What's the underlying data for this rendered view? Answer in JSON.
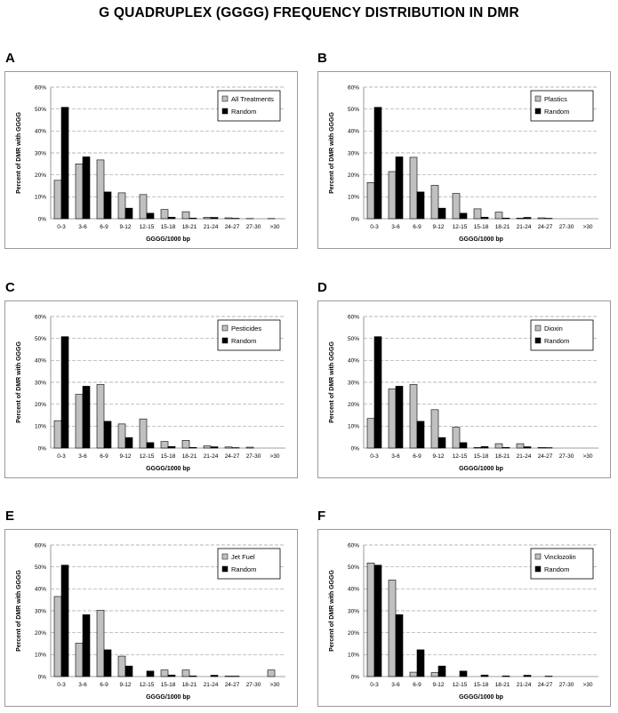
{
  "title": "G QUADRUPLEX (GGGG) FREQUENCY DISTRIBUTION IN DMR",
  "colors": {
    "treatment": "#c0c0c0",
    "random": "#000000",
    "grid": "#a0a0a0"
  },
  "chart_data": [
    {
      "panel": "A",
      "type": "bar",
      "categories": [
        "0-3",
        "3-6",
        "6-9",
        "9-12",
        "12-15",
        "15-18",
        "18-21",
        "21-24",
        "24-27",
        "27-30",
        ">30"
      ],
      "series": [
        {
          "name": "All Treatments",
          "values": [
            17.5,
            25,
            26.8,
            11.8,
            11,
            4.2,
            3.2,
            0.6,
            0.4,
            0.1,
            0.1
          ]
        },
        {
          "name": "Random",
          "values": [
            50.8,
            28.2,
            12.2,
            4.8,
            2.5,
            0.7,
            0.3,
            0.6,
            0.2,
            0,
            0
          ]
        }
      ],
      "ylim": [
        0,
        60
      ],
      "yticks": [
        "0%",
        "10%",
        "20%",
        "30%",
        "40%",
        "50%",
        "60%"
      ],
      "xlabel": "GGGG/1000 bp",
      "ylabel": "Percent of DMR with GGGG",
      "legend_position": "top-right"
    },
    {
      "panel": "B",
      "type": "bar",
      "categories": [
        "0-3",
        "3-6",
        "6-9",
        "9-12",
        "12-15",
        "15-18",
        "18-21",
        "21-24",
        "24-27",
        "27-30",
        ">30"
      ],
      "series": [
        {
          "name": "Plastics",
          "values": [
            16.5,
            21.5,
            28,
            15.2,
            11.5,
            4.5,
            3,
            0.3,
            0.4,
            0,
            0
          ]
        },
        {
          "name": "Random",
          "values": [
            50.8,
            28.2,
            12.2,
            4.8,
            2.5,
            0.7,
            0.3,
            0.6,
            0.2,
            0,
            0
          ]
        }
      ],
      "ylim": [
        0,
        60
      ],
      "yticks": [
        "0%",
        "10%",
        "20%",
        "30%",
        "40%",
        "50%",
        "60%"
      ],
      "xlabel": "GGGG/1000 bp",
      "ylabel": "Percent of DMR with GGGG",
      "legend_position": "top-right"
    },
    {
      "panel": "C",
      "type": "bar",
      "categories": [
        "0-3",
        "3-6",
        "6-9",
        "9-12",
        "12-15",
        "15-18",
        "18-21",
        "21-24",
        "24-27",
        "27-30",
        ">30"
      ],
      "series": [
        {
          "name": "Pesticides",
          "values": [
            12.5,
            24.5,
            29,
            11,
            13.3,
            3,
            3.5,
            1,
            0.5,
            0.4,
            0
          ]
        },
        {
          "name": "Random",
          "values": [
            50.8,
            28.2,
            12.2,
            4.8,
            2.5,
            0.7,
            0.3,
            0.6,
            0.2,
            0,
            0
          ]
        }
      ],
      "ylim": [
        0,
        60
      ],
      "yticks": [
        "0%",
        "10%",
        "20%",
        "30%",
        "40%",
        "50%",
        "60%"
      ],
      "xlabel": "GGGG/1000 bp",
      "ylabel": "Percent of DMR with GGGG",
      "legend_position": "top-right"
    },
    {
      "panel": "D",
      "type": "bar",
      "categories": [
        "0-3",
        "3-6",
        "6-9",
        "9-12",
        "12-15",
        "15-18",
        "18-21",
        "21-24",
        "24-27",
        "27-30",
        ">30"
      ],
      "series": [
        {
          "name": "Dioxin",
          "values": [
            13.5,
            27,
            29,
            17.5,
            9.5,
            0.3,
            2,
            2,
            0.3,
            0,
            0
          ]
        },
        {
          "name": "Random",
          "values": [
            50.8,
            28.2,
            12.2,
            4.8,
            2.5,
            0.7,
            0.3,
            0.6,
            0.2,
            0,
            0
          ]
        }
      ],
      "ylim": [
        0,
        60
      ],
      "yticks": [
        "0%",
        "10%",
        "20%",
        "30%",
        "40%",
        "50%",
        "60%"
      ],
      "xlabel": "GGGG/1000 bp",
      "ylabel": "Percent of DMR with GGGG",
      "legend_position": "top-right"
    },
    {
      "panel": "E",
      "type": "bar",
      "categories": [
        "0-3",
        "3-6",
        "6-9",
        "9-12",
        "12-15",
        "15-18",
        "18-21",
        "21-24",
        "24-27",
        "27-30",
        ">30"
      ],
      "series": [
        {
          "name": "Jet Fuel",
          "values": [
            36.5,
            15.2,
            30.2,
            9.3,
            0,
            3,
            3,
            0,
            0.2,
            0,
            3
          ]
        },
        {
          "name": "Random",
          "values": [
            50.8,
            28.2,
            12.2,
            4.8,
            2.5,
            0.7,
            0.3,
            0.6,
            0.2,
            0,
            0
          ]
        }
      ],
      "ylim": [
        0,
        60
      ],
      "yticks": [
        "0%",
        "10%",
        "20%",
        "30%",
        "40%",
        "50%",
        "60%"
      ],
      "xlabel": "GGGG/1000 bp",
      "ylabel": "Percent of DMR with GGGG",
      "legend_position": "top-right"
    },
    {
      "panel": "F",
      "type": "bar",
      "categories": [
        "0-3",
        "3-6",
        "6-9",
        "9-12",
        "12-15",
        "15-18",
        "18-21",
        "21-24",
        "24-27",
        "27-30",
        ">30"
      ],
      "series": [
        {
          "name": "Vinclozolin",
          "values": [
            51.8,
            44,
            2,
            1.8,
            0,
            0,
            0,
            0,
            0,
            0,
            0
          ]
        },
        {
          "name": "Random",
          "values": [
            50.8,
            28.2,
            12.2,
            4.8,
            2.5,
            0.7,
            0.3,
            0.6,
            0.2,
            0,
            0
          ]
        }
      ],
      "ylim": [
        0,
        60
      ],
      "yticks": [
        "0%",
        "10%",
        "20%",
        "30%",
        "40%",
        "50%",
        "60%"
      ],
      "xlabel": "GGGG/1000 bp",
      "ylabel": "Percent of DMR with GGGG",
      "legend_position": "top-right"
    }
  ]
}
